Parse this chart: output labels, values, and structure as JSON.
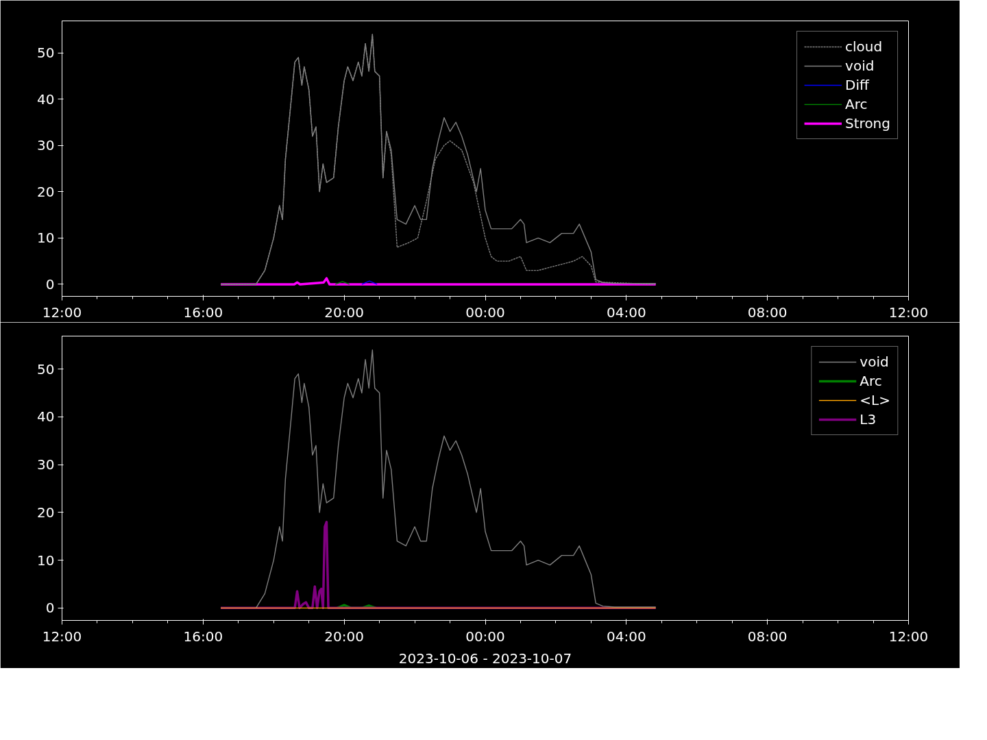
{
  "chart_data": [
    {
      "type": "line",
      "xlim": [
        "2023-10-06T12:00",
        "2023-10-07T12:00"
      ],
      "xticks": [
        {
          "value": "2023-10-06T12:00",
          "label": "12:00"
        },
        {
          "value": "2023-10-06T13:00",
          "label": null
        },
        {
          "value": "2023-10-06T14:00",
          "label": null
        },
        {
          "value": "2023-10-06T15:00",
          "label": null
        },
        {
          "value": "2023-10-06T16:00",
          "label": "16:00"
        },
        {
          "value": "2023-10-06T17:00",
          "label": null
        },
        {
          "value": "2023-10-06T18:00",
          "label": null
        },
        {
          "value": "2023-10-06T19:00",
          "label": null
        },
        {
          "value": "2023-10-06T20:00",
          "label": "20:00"
        },
        {
          "value": "2023-10-06T21:00",
          "label": null
        },
        {
          "value": "2023-10-06T22:00",
          "label": null
        },
        {
          "value": "2023-10-06T23:00",
          "label": null
        },
        {
          "value": "2023-10-07T00:00",
          "label": "00:00"
        },
        {
          "value": "2023-10-07T01:00",
          "label": null
        },
        {
          "value": "2023-10-07T02:00",
          "label": null
        },
        {
          "value": "2023-10-07T03:00",
          "label": null
        },
        {
          "value": "2023-10-07T04:00",
          "label": "04:00"
        },
        {
          "value": "2023-10-07T05:00",
          "label": null
        },
        {
          "value": "2023-10-07T06:00",
          "label": null
        },
        {
          "value": "2023-10-07T07:00",
          "label": null
        },
        {
          "value": "2023-10-07T08:00",
          "label": "08:00"
        },
        {
          "value": "2023-10-07T09:00",
          "label": null
        },
        {
          "value": "2023-10-07T10:00",
          "label": null
        },
        {
          "value": "2023-10-07T11:00",
          "label": null
        },
        {
          "value": "2023-10-07T12:00",
          "label": "12:00"
        }
      ],
      "ylim": [
        -2.6,
        56.9
      ],
      "yticks": [
        0,
        10,
        20,
        30,
        40,
        50
      ],
      "grid": false,
      "legend": "top right",
      "series": [
        {
          "name": "cloud",
          "color": "#808080",
          "line_style": "dashed",
          "x": [
            "2023-10-06T16:30",
            "2023-10-06T17:30",
            "2023-10-06T17:45",
            "2023-10-06T18:00",
            "2023-10-06T18:10",
            "2023-10-06T18:15",
            "2023-10-06T18:20",
            "2023-10-06T18:30",
            "2023-10-06T18:36",
            "2023-10-06T18:42",
            "2023-10-06T18:48",
            "2023-10-06T18:52",
            "2023-10-06T19:00",
            "2023-10-06T19:06",
            "2023-10-06T19:12",
            "2023-10-06T19:18",
            "2023-10-06T19:24",
            "2023-10-06T19:30",
            "2023-10-06T19:42",
            "2023-10-06T19:50",
            "2023-10-06T20:00",
            "2023-10-06T20:06",
            "2023-10-06T20:15",
            "2023-10-06T20:24",
            "2023-10-06T20:30",
            "2023-10-06T20:36",
            "2023-10-06T20:42",
            "2023-10-06T20:48",
            "2023-10-06T20:52",
            "2023-10-06T21:00",
            "2023-10-06T21:06",
            "2023-10-06T21:12",
            "2023-10-06T21:20",
            "2023-10-06T21:30",
            "2023-10-06T21:50",
            "2023-10-06T22:05",
            "2023-10-06T22:20",
            "2023-10-06T22:35",
            "2023-10-06T22:50",
            "2023-10-06T23:00",
            "2023-10-06T23:20",
            "2023-10-06T23:40",
            "2023-10-07T00:00",
            "2023-10-07T00:10",
            "2023-10-07T00:20",
            "2023-10-07T00:40",
            "2023-10-07T01:00",
            "2023-10-07T01:10",
            "2023-10-07T01:30",
            "2023-10-07T02:00",
            "2023-10-07T02:30",
            "2023-10-07T02:45",
            "2023-10-07T03:00",
            "2023-10-07T03:08",
            "2023-10-07T04:50"
          ],
          "values": [
            0,
            0,
            3,
            10,
            17,
            14,
            27,
            40,
            48,
            49,
            43,
            47,
            42,
            32,
            34,
            20,
            26,
            22,
            23,
            34,
            44,
            47,
            44,
            48,
            45,
            52,
            46,
            54,
            46,
            45,
            23,
            33,
            28,
            8,
            9,
            10,
            18,
            27,
            30,
            31,
            29,
            22,
            10,
            6,
            5,
            5,
            6,
            3,
            3,
            4,
            5,
            6,
            4,
            0.5,
            0
          ]
        },
        {
          "name": "void",
          "color": "#808080",
          "line_style": "solid",
          "x": [
            "2023-10-06T16:30",
            "2023-10-06T17:30",
            "2023-10-06T17:45",
            "2023-10-06T18:00",
            "2023-10-06T18:10",
            "2023-10-06T18:15",
            "2023-10-06T18:20",
            "2023-10-06T18:30",
            "2023-10-06T18:36",
            "2023-10-06T18:42",
            "2023-10-06T18:48",
            "2023-10-06T18:52",
            "2023-10-06T19:00",
            "2023-10-06T19:06",
            "2023-10-06T19:12",
            "2023-10-06T19:18",
            "2023-10-06T19:24",
            "2023-10-06T19:30",
            "2023-10-06T19:42",
            "2023-10-06T19:50",
            "2023-10-06T20:00",
            "2023-10-06T20:06",
            "2023-10-06T20:15",
            "2023-10-06T20:24",
            "2023-10-06T20:30",
            "2023-10-06T20:36",
            "2023-10-06T20:42",
            "2023-10-06T20:48",
            "2023-10-06T20:52",
            "2023-10-06T21:00",
            "2023-10-06T21:06",
            "2023-10-06T21:12",
            "2023-10-06T21:20",
            "2023-10-06T21:30",
            "2023-10-06T21:45",
            "2023-10-06T22:00",
            "2023-10-06T22:10",
            "2023-10-06T22:20",
            "2023-10-06T22:30",
            "2023-10-06T22:40",
            "2023-10-06T22:50",
            "2023-10-06T23:00",
            "2023-10-06T23:10",
            "2023-10-06T23:20",
            "2023-10-06T23:30",
            "2023-10-06T23:45",
            "2023-10-06T23:52",
            "2023-10-07T00:00",
            "2023-10-07T00:10",
            "2023-10-07T00:30",
            "2023-10-07T00:45",
            "2023-10-07T01:00",
            "2023-10-07T01:06",
            "2023-10-07T01:10",
            "2023-10-07T01:30",
            "2023-10-07T01:50",
            "2023-10-07T02:10",
            "2023-10-07T02:30",
            "2023-10-07T02:40",
            "2023-10-07T02:50",
            "2023-10-07T03:00",
            "2023-10-07T03:08",
            "2023-10-07T03:20",
            "2023-10-07T03:40",
            "2023-10-07T04:50"
          ],
          "values": [
            0,
            0,
            3,
            10,
            17,
            14,
            27,
            40,
            48,
            49,
            43,
            47,
            42,
            32,
            34,
            20,
            26,
            22,
            23,
            34,
            44,
            47,
            44,
            48,
            45,
            52,
            46,
            54,
            46,
            45,
            23,
            33,
            29,
            14,
            13,
            17,
            14,
            14,
            25,
            31,
            36,
            33,
            35,
            32,
            28,
            20,
            25,
            16,
            12,
            12,
            12,
            14,
            13,
            9,
            10,
            9,
            11,
            11,
            13,
            10,
            7,
            1,
            0.4,
            0.2,
            0.2
          ]
        },
        {
          "name": "Diff",
          "color": "#0000ff",
          "line_style": "solid",
          "x": [
            "2023-10-06T20:30",
            "2023-10-06T20:43",
            "2023-10-06T20:56"
          ],
          "values": [
            0,
            0.7,
            0
          ]
        },
        {
          "name": "Arc",
          "color": "#008000",
          "line_style": "solid",
          "x": [
            "2023-10-06T19:45",
            "2023-10-06T19:57",
            "2023-10-06T20:09"
          ],
          "values": [
            0,
            0.6,
            0
          ]
        },
        {
          "name": "Strong",
          "color": "#ff00ff",
          "line_style": "solid",
          "x": [
            "2023-10-06T16:30",
            "2023-10-06T18:35",
            "2023-10-06T18:40",
            "2023-10-06T18:45",
            "2023-10-06T19:15",
            "2023-10-06T19:25",
            "2023-10-06T19:30",
            "2023-10-06T19:35",
            "2023-10-07T04:50"
          ],
          "values": [
            0,
            0,
            0.4,
            0,
            0.3,
            0.4,
            1.3,
            0,
            0
          ]
        }
      ]
    },
    {
      "type": "line",
      "xlabel": "2023-10-06 - 2023-10-07",
      "xlim": [
        "2023-10-06T12:00",
        "2023-10-07T12:00"
      ],
      "xticks": [
        {
          "value": "2023-10-06T12:00",
          "label": "12:00"
        },
        {
          "value": "2023-10-06T13:00",
          "label": null
        },
        {
          "value": "2023-10-06T14:00",
          "label": null
        },
        {
          "value": "2023-10-06T15:00",
          "label": null
        },
        {
          "value": "2023-10-06T16:00",
          "label": "16:00"
        },
        {
          "value": "2023-10-06T17:00",
          "label": null
        },
        {
          "value": "2023-10-06T18:00",
          "label": null
        },
        {
          "value": "2023-10-06T19:00",
          "label": null
        },
        {
          "value": "2023-10-06T20:00",
          "label": "20:00"
        },
        {
          "value": "2023-10-06T21:00",
          "label": null
        },
        {
          "value": "2023-10-06T22:00",
          "label": null
        },
        {
          "value": "2023-10-06T23:00",
          "label": null
        },
        {
          "value": "2023-10-07T00:00",
          "label": "00:00"
        },
        {
          "value": "2023-10-07T01:00",
          "label": null
        },
        {
          "value": "2023-10-07T02:00",
          "label": null
        },
        {
          "value": "2023-10-07T03:00",
          "label": null
        },
        {
          "value": "2023-10-07T04:00",
          "label": "04:00"
        },
        {
          "value": "2023-10-07T05:00",
          "label": null
        },
        {
          "value": "2023-10-07T06:00",
          "label": null
        },
        {
          "value": "2023-10-07T07:00",
          "label": null
        },
        {
          "value": "2023-10-07T08:00",
          "label": "08:00"
        },
        {
          "value": "2023-10-07T09:00",
          "label": null
        },
        {
          "value": "2023-10-07T10:00",
          "label": null
        },
        {
          "value": "2023-10-07T11:00",
          "label": null
        },
        {
          "value": "2023-10-07T12:00",
          "label": "12:00"
        }
      ],
      "ylim": [
        -2.6,
        56.9
      ],
      "yticks": [
        0,
        10,
        20,
        30,
        40,
        50
      ],
      "grid": false,
      "legend": "top right",
      "series": [
        {
          "name": "void",
          "color": "#808080",
          "line_style": "solid",
          "x": [
            "2023-10-06T16:30",
            "2023-10-06T17:30",
            "2023-10-06T17:45",
            "2023-10-06T18:00",
            "2023-10-06T18:10",
            "2023-10-06T18:15",
            "2023-10-06T18:20",
            "2023-10-06T18:30",
            "2023-10-06T18:36",
            "2023-10-06T18:42",
            "2023-10-06T18:48",
            "2023-10-06T18:52",
            "2023-10-06T19:00",
            "2023-10-06T19:06",
            "2023-10-06T19:12",
            "2023-10-06T19:18",
            "2023-10-06T19:24",
            "2023-10-06T19:30",
            "2023-10-06T19:42",
            "2023-10-06T19:50",
            "2023-10-06T20:00",
            "2023-10-06T20:06",
            "2023-10-06T20:15",
            "2023-10-06T20:24",
            "2023-10-06T20:30",
            "2023-10-06T20:36",
            "2023-10-06T20:42",
            "2023-10-06T20:48",
            "2023-10-06T20:52",
            "2023-10-06T21:00",
            "2023-10-06T21:06",
            "2023-10-06T21:12",
            "2023-10-06T21:20",
            "2023-10-06T21:30",
            "2023-10-06T21:45",
            "2023-10-06T22:00",
            "2023-10-06T22:10",
            "2023-10-06T22:20",
            "2023-10-06T22:30",
            "2023-10-06T22:40",
            "2023-10-06T22:50",
            "2023-10-06T23:00",
            "2023-10-06T23:10",
            "2023-10-06T23:20",
            "2023-10-06T23:30",
            "2023-10-06T23:45",
            "2023-10-06T23:52",
            "2023-10-07T00:00",
            "2023-10-07T00:10",
            "2023-10-07T00:30",
            "2023-10-07T00:45",
            "2023-10-07T01:00",
            "2023-10-07T01:06",
            "2023-10-07T01:10",
            "2023-10-07T01:30",
            "2023-10-07T01:50",
            "2023-10-07T02:10",
            "2023-10-07T02:30",
            "2023-10-07T02:40",
            "2023-10-07T02:50",
            "2023-10-07T03:00",
            "2023-10-07T03:08",
            "2023-10-07T03:20",
            "2023-10-07T03:40",
            "2023-10-07T04:50"
          ],
          "values": [
            0,
            0,
            3,
            10,
            17,
            14,
            27,
            40,
            48,
            49,
            43,
            47,
            42,
            32,
            34,
            20,
            26,
            22,
            23,
            34,
            44,
            47,
            44,
            48,
            45,
            52,
            46,
            54,
            46,
            45,
            23,
            33,
            29,
            14,
            13,
            17,
            14,
            14,
            25,
            31,
            36,
            33,
            35,
            32,
            28,
            20,
            25,
            16,
            12,
            12,
            12,
            14,
            13,
            9,
            10,
            9,
            11,
            11,
            13,
            10,
            7,
            1,
            0.4,
            0.2,
            0.2
          ]
        },
        {
          "name": "Arc",
          "color": "#008000",
          "line_style": "solid",
          "x": [
            "2023-10-06T19:48",
            "2023-10-06T20:00",
            "2023-10-06T20:12",
            "2023-10-06T20:30",
            "2023-10-06T20:42",
            "2023-10-06T20:54"
          ],
          "values": [
            0,
            0.6,
            0,
            0,
            0.5,
            0
          ]
        },
        {
          "name": "<L>",
          "color": "#ffa500",
          "line_style": "solid",
          "x": [
            "2023-10-06T16:30",
            "2023-10-07T04:50"
          ],
          "values": [
            0,
            0
          ]
        },
        {
          "name": "L3",
          "color": "#800080",
          "line_style": "solid",
          "x": [
            "2023-10-06T16:30",
            "2023-10-06T18:36",
            "2023-10-06T18:40",
            "2023-10-06T18:44",
            "2023-10-06T18:50",
            "2023-10-06T18:55",
            "2023-10-06T19:00",
            "2023-10-06T19:06",
            "2023-10-06T19:10",
            "2023-10-06T19:14",
            "2023-10-06T19:18",
            "2023-10-06T19:21",
            "2023-10-06T19:24",
            "2023-10-06T19:27",
            "2023-10-06T19:30",
            "2023-10-06T19:33",
            "2023-10-07T04:50"
          ],
          "values": [
            0,
            0,
            3.5,
            0,
            0.8,
            1.2,
            0,
            0,
            4.5,
            0,
            3.5,
            4,
            0,
            17,
            18,
            0,
            0
          ]
        }
      ]
    }
  ]
}
